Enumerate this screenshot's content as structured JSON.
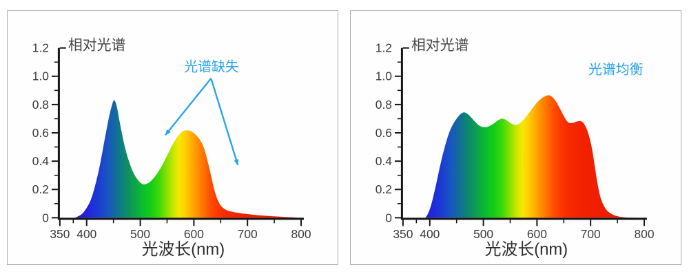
{
  "page": {
    "background": "#ffffff",
    "panel_border": "#a9a9a9",
    "panel_background": "#fefefe"
  },
  "style": {
    "axis_color": "#141414",
    "tick_label_color": "#3c3c3c",
    "title_color": "#454545",
    "xlabel_color": "#2e2e2e",
    "annotation_blue": "#29a3e8"
  },
  "spectrum_gradient": [
    [
      380,
      "#2a0fc4"
    ],
    [
      400,
      "#2222dd"
    ],
    [
      420,
      "#1c39d6"
    ],
    [
      440,
      "#1857c0"
    ],
    [
      452,
      "#14689f"
    ],
    [
      465,
      "#0d7f7f"
    ],
    [
      478,
      "#0e915f"
    ],
    [
      492,
      "#0ca844"
    ],
    [
      505,
      "#0abf2e"
    ],
    [
      520,
      "#15cd17"
    ],
    [
      535,
      "#3bd909"
    ],
    [
      550,
      "#8ce000"
    ],
    [
      562,
      "#c8e600"
    ],
    [
      572,
      "#f5e800"
    ],
    [
      583,
      "#ffd000"
    ],
    [
      595,
      "#ffb000"
    ],
    [
      607,
      "#ff8f00"
    ],
    [
      618,
      "#ff7300"
    ],
    [
      630,
      "#ff5000"
    ],
    [
      643,
      "#fc3a00"
    ],
    [
      658,
      "#f72b00"
    ],
    [
      680,
      "#f32300"
    ],
    [
      710,
      "#ef1e00"
    ],
    [
      800,
      "#ea1a00"
    ]
  ],
  "chart_data": [
    {
      "type": "area",
      "panel": "left",
      "title": "相对光谱",
      "xlabel": "光波长(nm)",
      "xlim": [
        350,
        800
      ],
      "ylim": [
        0,
        1.2
      ],
      "x_tick_values": [
        350,
        400,
        500,
        600,
        700,
        800
      ],
      "x_tick_labels": [
        "350",
        "400",
        "500",
        "600",
        "700",
        "800"
      ],
      "x_minor_ticks": [
        375,
        450,
        550,
        650,
        750
      ],
      "y_tick_values": [
        0,
        0.2,
        0.4,
        0.6,
        0.8,
        1.0,
        1.2
      ],
      "y_tick_labels": [
        "0",
        "0.2",
        "0.4",
        "0.6",
        "0.8",
        "1.0",
        "1.2"
      ],
      "y_minor_ticks": [
        0.1,
        0.3,
        0.5,
        0.7,
        0.9,
        1.1
      ],
      "annotation": {
        "text": "光谱缺失",
        "text_pos": {
          "nm": 633,
          "v": 1.07
        },
        "vertex": {
          "nm": 632,
          "v": 0.985
        },
        "arrow_tips": [
          {
            "nm": 547,
            "v": 0.585
          },
          {
            "nm": 682,
            "v": 0.373
          }
        ]
      },
      "points": [
        [
          378,
          0
        ],
        [
          384,
          0.01
        ],
        [
          392,
          0.03
        ],
        [
          400,
          0.07
        ],
        [
          408,
          0.13
        ],
        [
          416,
          0.23
        ],
        [
          424,
          0.36
        ],
        [
          432,
          0.52
        ],
        [
          440,
          0.68
        ],
        [
          446,
          0.78
        ],
        [
          451,
          0.83
        ],
        [
          456,
          0.79
        ],
        [
          462,
          0.67
        ],
        [
          470,
          0.52
        ],
        [
          478,
          0.41
        ],
        [
          487,
          0.32
        ],
        [
          496,
          0.265
        ],
        [
          504,
          0.238
        ],
        [
          512,
          0.24
        ],
        [
          520,
          0.26
        ],
        [
          530,
          0.305
        ],
        [
          540,
          0.365
        ],
        [
          550,
          0.44
        ],
        [
          560,
          0.515
        ],
        [
          570,
          0.575
        ],
        [
          578,
          0.607
        ],
        [
          585,
          0.617
        ],
        [
          593,
          0.615
        ],
        [
          600,
          0.598
        ],
        [
          607,
          0.572
        ],
        [
          613,
          0.54
        ],
        [
          619,
          0.49
        ],
        [
          625,
          0.41
        ],
        [
          631,
          0.315
        ],
        [
          637,
          0.215
        ],
        [
          643,
          0.14
        ],
        [
          649,
          0.092
        ],
        [
          655,
          0.068
        ],
        [
          662,
          0.052
        ],
        [
          672,
          0.042
        ],
        [
          685,
          0.033
        ],
        [
          700,
          0.026
        ],
        [
          720,
          0.018
        ],
        [
          745,
          0.011
        ],
        [
          770,
          0.006
        ],
        [
          790,
          0.002
        ],
        [
          800,
          0.001
        ]
      ]
    },
    {
      "type": "area",
      "panel": "right",
      "title": "相对光谱",
      "xlabel": "光波长(nm)",
      "xlim": [
        350,
        800
      ],
      "ylim": [
        0,
        1.2
      ],
      "x_tick_values": [
        350,
        400,
        500,
        600,
        700,
        800
      ],
      "x_tick_labels": [
        "350",
        "400",
        "500",
        "600",
        "700",
        "800"
      ],
      "x_minor_ticks": [
        375,
        450,
        550,
        650,
        750
      ],
      "y_tick_values": [
        0,
        0.2,
        0.4,
        0.6,
        0.8,
        1.0,
        1.2
      ],
      "y_tick_labels": [
        "0",
        "0.2",
        "0.4",
        "0.6",
        "0.8",
        "1.0",
        "1.2"
      ],
      "y_minor_ticks": [
        0.1,
        0.3,
        0.5,
        0.7,
        0.9,
        1.1
      ],
      "label": {
        "text": "光谱均衡",
        "pos": {
          "nm": 747,
          "v": 1.05
        }
      },
      "points": [
        [
          392,
          0
        ],
        [
          398,
          0.04
        ],
        [
          404,
          0.11
        ],
        [
          412,
          0.24
        ],
        [
          420,
          0.38
        ],
        [
          428,
          0.5
        ],
        [
          436,
          0.6
        ],
        [
          444,
          0.665
        ],
        [
          452,
          0.71
        ],
        [
          458,
          0.735
        ],
        [
          464,
          0.745
        ],
        [
          470,
          0.735
        ],
        [
          477,
          0.71
        ],
        [
          484,
          0.68
        ],
        [
          491,
          0.655
        ],
        [
          498,
          0.642
        ],
        [
          505,
          0.64
        ],
        [
          512,
          0.65
        ],
        [
          520,
          0.668
        ],
        [
          528,
          0.69
        ],
        [
          535,
          0.7
        ],
        [
          542,
          0.692
        ],
        [
          549,
          0.673
        ],
        [
          556,
          0.659
        ],
        [
          562,
          0.658
        ],
        [
          568,
          0.668
        ],
        [
          575,
          0.693
        ],
        [
          583,
          0.73
        ],
        [
          592,
          0.775
        ],
        [
          601,
          0.818
        ],
        [
          610,
          0.848
        ],
        [
          617,
          0.862
        ],
        [
          623,
          0.865
        ],
        [
          629,
          0.852
        ],
        [
          636,
          0.818
        ],
        [
          643,
          0.77
        ],
        [
          650,
          0.718
        ],
        [
          656,
          0.682
        ],
        [
          661,
          0.67
        ],
        [
          668,
          0.672
        ],
        [
          675,
          0.68
        ],
        [
          681,
          0.683
        ],
        [
          687,
          0.668
        ],
        [
          693,
          0.625
        ],
        [
          698,
          0.565
        ],
        [
          703,
          0.48
        ],
        [
          708,
          0.36
        ],
        [
          713,
          0.24
        ],
        [
          718,
          0.15
        ],
        [
          724,
          0.09
        ],
        [
          731,
          0.05
        ],
        [
          740,
          0.025
        ],
        [
          750,
          0.011
        ],
        [
          762,
          0.004
        ],
        [
          775,
          0.001
        ],
        [
          788,
          0
        ]
      ]
    }
  ]
}
